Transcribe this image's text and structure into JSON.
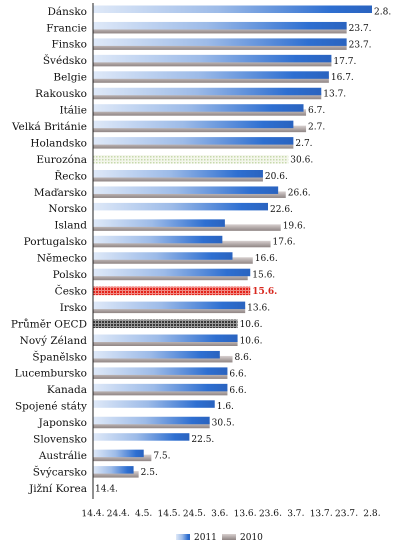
{
  "chart_data": {
    "type": "bar",
    "orientation": "horizontal",
    "legend_position": "bottom",
    "grid": false,
    "x_ticks": [
      "14.4.",
      "24.4.",
      "4.5.",
      "14.5.",
      "24.5.",
      "3.6.",
      "13.6.",
      "23.6.",
      "3.7.",
      "13.7.",
      "23.7.",
      "2.8."
    ],
    "xlim": [
      "14.4.",
      "2.8."
    ],
    "categories": [
      "Dánsko",
      "Francie",
      "Finsko",
      "Švédsko",
      "Belgie",
      "Rakousko",
      "Itálie",
      "Velká Británie",
      "Holandsko",
      "Eurozóna",
      "Řecko",
      "Maďarsko",
      "Norsko",
      "Island",
      "Portugalsko",
      "Německo",
      "Polsko",
      "Česko",
      "Irsko",
      "Průměr OECD",
      "Nový Zéland",
      "Španělsko",
      "Lucembursko",
      "Kanada",
      "Spojené státy",
      "Japonsko",
      "Slovensko",
      "Austrálie",
      "Švýcarsko",
      "Jižní Korea"
    ],
    "labels": [
      "2.8.",
      "23.7.",
      "23.7.",
      "17.7.",
      "16.7.",
      "13.7.",
      "6.7.",
      "2.7.",
      "2.7.",
      "30.6.",
      "20.6.",
      "26.6.",
      "22.6.",
      "19.6.",
      "17.6.",
      "16.6.",
      "15.6.",
      "15.6.",
      "13.6.",
      "10.6.",
      "10.6.",
      "8.6.",
      "6.6.",
      "6.6.",
      "1.6.",
      "30.5.",
      "22.5.",
      "7.5.",
      "2.5.",
      "14.4."
    ],
    "series": [
      {
        "name": "2011",
        "values": [
          "2.8.",
          "23.7.",
          "23.7.",
          "17.7.",
          "16.7.",
          "13.7.",
          "6.7.",
          "2.7.",
          "2.7.",
          "",
          "20.6.",
          "26.6.",
          "22.6.",
          "5.6.",
          "4.6.",
          "8.6.",
          "15.6.",
          "",
          "13.6.",
          "",
          "10.6.",
          "3.6.",
          "6.6.",
          "6.6.",
          "1.6.",
          "30.5.",
          "22.5.",
          "4.5.",
          "30.4.",
          ""
        ]
      },
      {
        "name": "2010",
        "values": [
          "",
          "23.7.",
          "23.7.",
          "17.7.",
          "16.7.",
          "13.7.",
          "7.7.",
          "7.7.",
          "2.7.",
          "30.6.",
          "20.6.",
          "29.6.",
          "",
          "27.6.",
          "23.6.",
          "16.6.",
          "14.6.",
          "15.6.",
          "13.6.",
          "10.6.",
          "10.6.",
          "8.6.",
          "6.6.",
          "6.6.",
          "",
          "30.5.",
          "",
          "7.5.",
          "2.5.",
          "14.4."
        ]
      }
    ],
    "special_rows": {
      "Eurozóna": "aggregate",
      "Česko": "highlight",
      "Průměr OECD": "aggregate"
    },
    "colors": {
      "series_2011": "#2e6fd1",
      "series_2011_light": "#dfe9f8",
      "series_2010": "#b3aaa9",
      "series_2010_dark": "#8f8584",
      "highlight": "#e3241c",
      "aggregate_2010": "#c7d9ac",
      "aggregate_2011": "#3a3a3a",
      "axis": "#222222"
    }
  }
}
